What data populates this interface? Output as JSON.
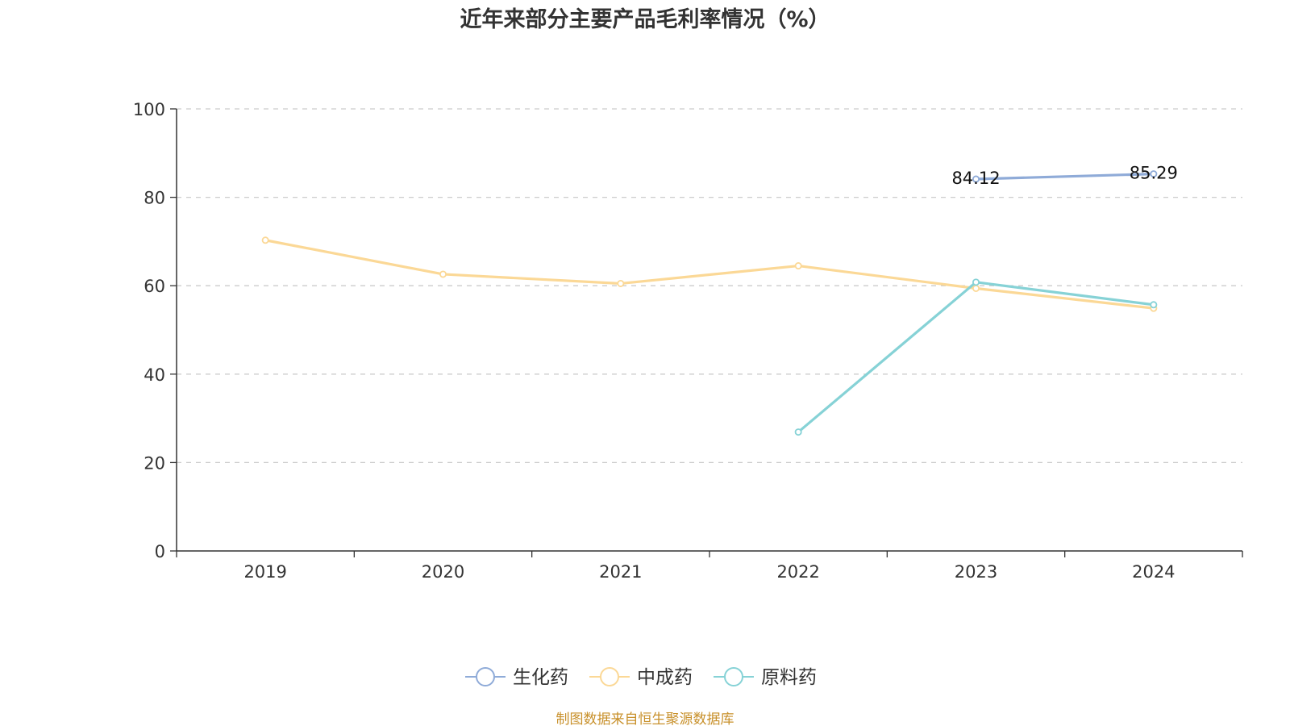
{
  "chart_data": {
    "type": "line",
    "title": "近年来部分主要产品毛利率情况（%）",
    "categories": [
      "2019",
      "2020",
      "2021",
      "2022",
      "2023",
      "2024"
    ],
    "y_ticks": [
      "0",
      "20",
      "40",
      "60",
      "80",
      "100"
    ],
    "ylim": [
      0,
      100
    ],
    "grid": true,
    "legend_position": "bottom-center",
    "series": [
      {
        "key": "shenghuayao",
        "name": "生化药",
        "color": "#8fabd8",
        "values": [
          null,
          null,
          null,
          null,
          84.12,
          85.29
        ],
        "labels": [
          null,
          null,
          null,
          null,
          "84.12",
          "85.29"
        ]
      },
      {
        "key": "zhongchengyao",
        "name": "中成药",
        "color": "#fbd896",
        "values": [
          70.3,
          62.6,
          60.5,
          64.5,
          59.4,
          54.9
        ],
        "labels": [
          null,
          null,
          null,
          null,
          null,
          null
        ]
      },
      {
        "key": "yuanliaoyao",
        "name": "原料药",
        "color": "#86d2d6",
        "values": [
          null,
          null,
          null,
          26.9,
          60.8,
          55.7
        ],
        "labels": [
          null,
          null,
          null,
          null,
          null,
          null
        ]
      }
    ],
    "source": "制图数据来自恒生聚源数据库",
    "source_color": "#c8902a",
    "axis_color": "#333333",
    "grid_color": "#cccccc"
  }
}
